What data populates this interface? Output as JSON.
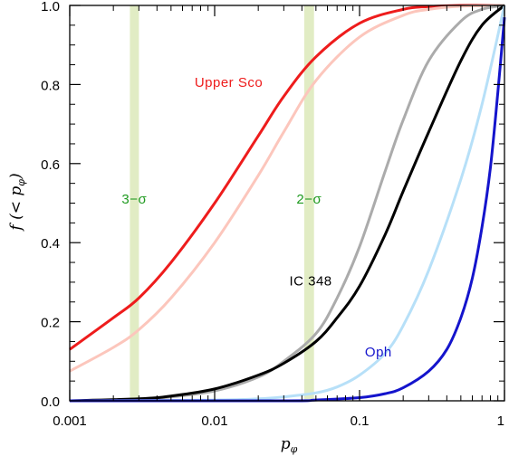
{
  "chart_data": {
    "type": "line",
    "xscale": "log",
    "xlim": [
      0.001,
      1.0
    ],
    "ylim": [
      0.0,
      1.0
    ],
    "xlabel": "p_φ",
    "ylabel": "f (< p_φ)",
    "xticks": [
      0.001,
      0.01,
      0.1,
      1.0
    ],
    "xtick_labels": [
      "0.001",
      "0.01",
      "0.1",
      "1"
    ],
    "yticks": [
      0.0,
      0.2,
      0.4,
      0.6,
      0.8,
      1.0
    ],
    "ytick_labels": [
      "0.0",
      "0.2",
      "0.4",
      "0.6",
      "0.8",
      "1.0"
    ],
    "grid": false,
    "bands": [
      {
        "label": "3−σ",
        "x": [
          0.0026,
          0.003
        ],
        "color": "#e1ecc4",
        "label_color": "#1f9a1f",
        "label_y": 0.51
      },
      {
        "label": "2−σ",
        "x": [
          0.0415,
          0.0485
        ],
        "color": "#e1ecc4",
        "label_color": "#1f9a1f",
        "label_y": 0.51
      }
    ],
    "series": [
      {
        "name": "Upper Sco",
        "color": "#ee1c1c",
        "label_color": "#ee1c1c",
        "label_at": [
          0.0125,
          0.805
        ],
        "x": [
          0.001,
          0.002,
          0.003,
          0.005,
          0.01,
          0.02,
          0.03,
          0.05,
          0.1,
          0.2,
          0.3,
          0.5,
          1.0
        ],
        "y": [
          0.13,
          0.21,
          0.26,
          0.35,
          0.5,
          0.67,
          0.77,
          0.87,
          0.955,
          0.99,
          0.997,
          1.0,
          1.0
        ]
      },
      {
        "name": "",
        "color": "#fcc6bc",
        "x": [
          0.001,
          0.002,
          0.003,
          0.005,
          0.01,
          0.02,
          0.03,
          0.05,
          0.1,
          0.2,
          0.3,
          0.5,
          1.0
        ],
        "y": [
          0.075,
          0.135,
          0.18,
          0.26,
          0.4,
          0.57,
          0.68,
          0.81,
          0.92,
          0.975,
          0.99,
          0.998,
          1.0
        ]
      },
      {
        "name": "",
        "color": "#ababab",
        "x": [
          0.001,
          0.003,
          0.005,
          0.01,
          0.02,
          0.03,
          0.05,
          0.07,
          0.1,
          0.15,
          0.2,
          0.3,
          0.5,
          0.7,
          1.0
        ],
        "y": [
          0.0,
          0.003,
          0.01,
          0.025,
          0.06,
          0.1,
          0.17,
          0.26,
          0.39,
          0.58,
          0.71,
          0.86,
          0.96,
          0.99,
          1.0
        ]
      },
      {
        "name": "IC 348",
        "color": "#000000",
        "label_color": "#000000",
        "label_at": [
          0.046,
          0.303
        ],
        "x": [
          0.001,
          0.003,
          0.005,
          0.01,
          0.02,
          0.03,
          0.05,
          0.07,
          0.1,
          0.15,
          0.2,
          0.3,
          0.5,
          0.7,
          1.0
        ],
        "y": [
          0.0,
          0.005,
          0.012,
          0.03,
          0.065,
          0.095,
          0.15,
          0.21,
          0.29,
          0.42,
          0.53,
          0.68,
          0.86,
          0.95,
          1.0
        ]
      },
      {
        "name": "",
        "color": "#b7e0f8",
        "x": [
          0.001,
          0.01,
          0.02,
          0.03,
          0.05,
          0.07,
          0.1,
          0.15,
          0.2,
          0.3,
          0.5,
          0.7,
          1.0
        ],
        "y": [
          0.0,
          0.002,
          0.005,
          0.01,
          0.02,
          0.035,
          0.065,
          0.12,
          0.19,
          0.33,
          0.56,
          0.75,
          1.0
        ]
      },
      {
        "name": "Oph",
        "color": "#1414cc",
        "label_color": "#1414cc",
        "label_at": [
          0.135,
          0.123
        ],
        "x": [
          0.001,
          0.03,
          0.05,
          0.1,
          0.15,
          0.2,
          0.3,
          0.4,
          0.5,
          0.6,
          0.7,
          0.8,
          0.9,
          1.0
        ],
        "y": [
          0.0,
          0.0,
          0.002,
          0.008,
          0.018,
          0.033,
          0.075,
          0.13,
          0.21,
          0.31,
          0.44,
          0.59,
          0.78,
          0.97
        ]
      }
    ]
  }
}
